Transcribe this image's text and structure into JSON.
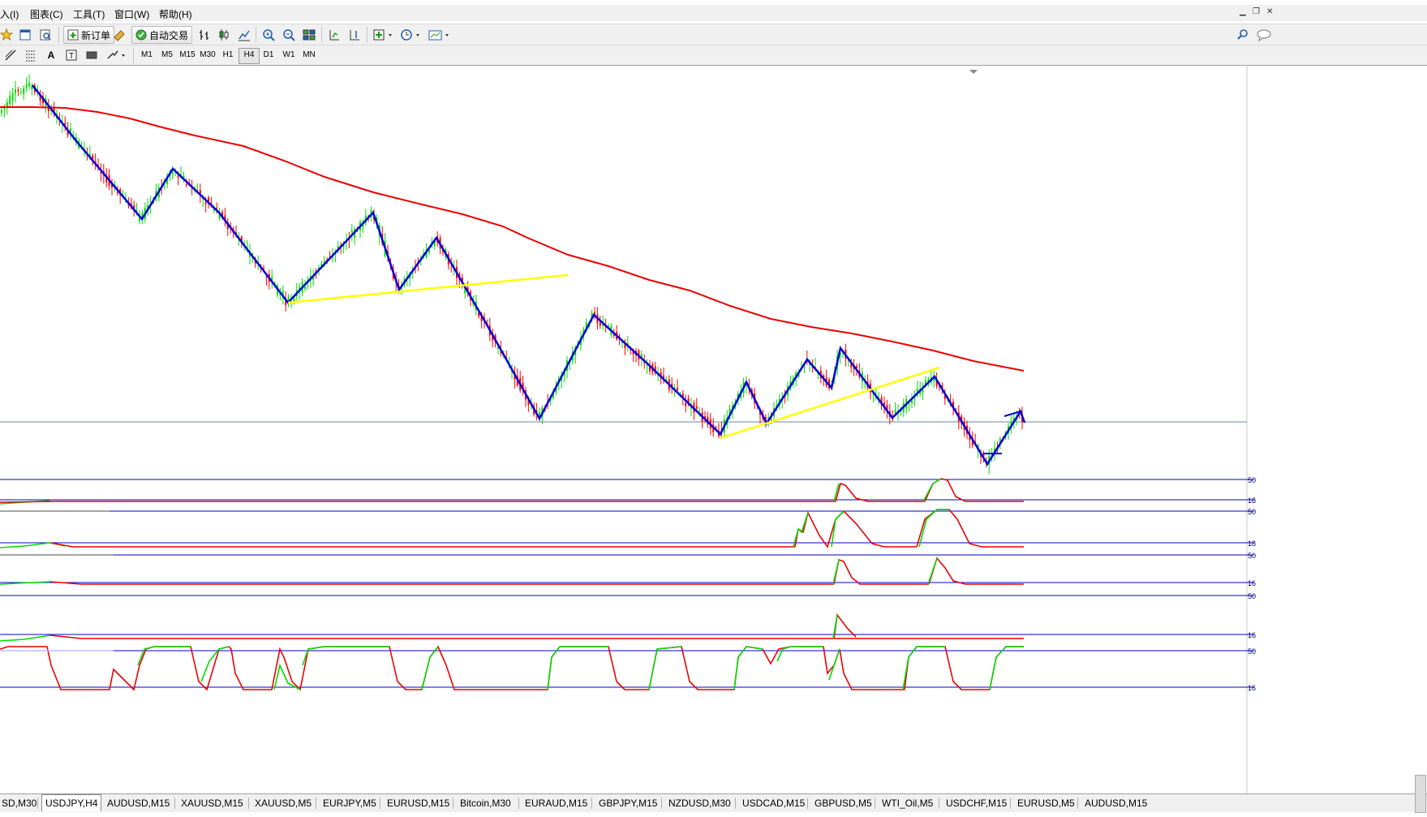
{
  "menu": {
    "items": [
      "入(I)",
      "图表(C)",
      "工具(T)",
      "窗口(W)",
      "帮助(H)"
    ]
  },
  "toolbar": {
    "new_order_label": "新订单",
    "auto_trade_label": "自动交易",
    "timeframes": [
      "M1",
      "M5",
      "M15",
      "M30",
      "H1",
      "H4",
      "D1",
      "W1",
      "MN"
    ],
    "active_timeframe": "H4"
  },
  "chart": {
    "symbol": "USDJPY",
    "period": "H4",
    "colors": {
      "bull_candle": "#00dd00",
      "bear_candle": "#ff0000",
      "moving_average": "#ff0000",
      "zigzag": "#0000dd",
      "trendline": "#ffff00",
      "level_line": "#0000cc",
      "indicator_green": "#00dd00",
      "indicator_red": "#ee0000"
    },
    "indicator_level_labels": [
      "50",
      "18",
      "50",
      "18",
      "50",
      "16",
      "50",
      "16",
      "50",
      "16"
    ]
  },
  "tabs": {
    "items": [
      "SD,M30",
      "USDJPY,H4",
      "AUDUSD,M15",
      "XAUUSD,M15",
      "XAUUSD,M5",
      "EURJPY,M5",
      "EURUSD,M15",
      "Bitcoin,M30",
      "EURAUD,M15",
      "GBPJPY,M15",
      "NZDUSD,M30",
      "USDCAD,M15",
      "GBPUSD,M5",
      "WTI_Oil,M5",
      "USDCHF,M15",
      "EURUSD,M5",
      "AUDUSD,M15"
    ],
    "active": "USDJPY,H4"
  }
}
